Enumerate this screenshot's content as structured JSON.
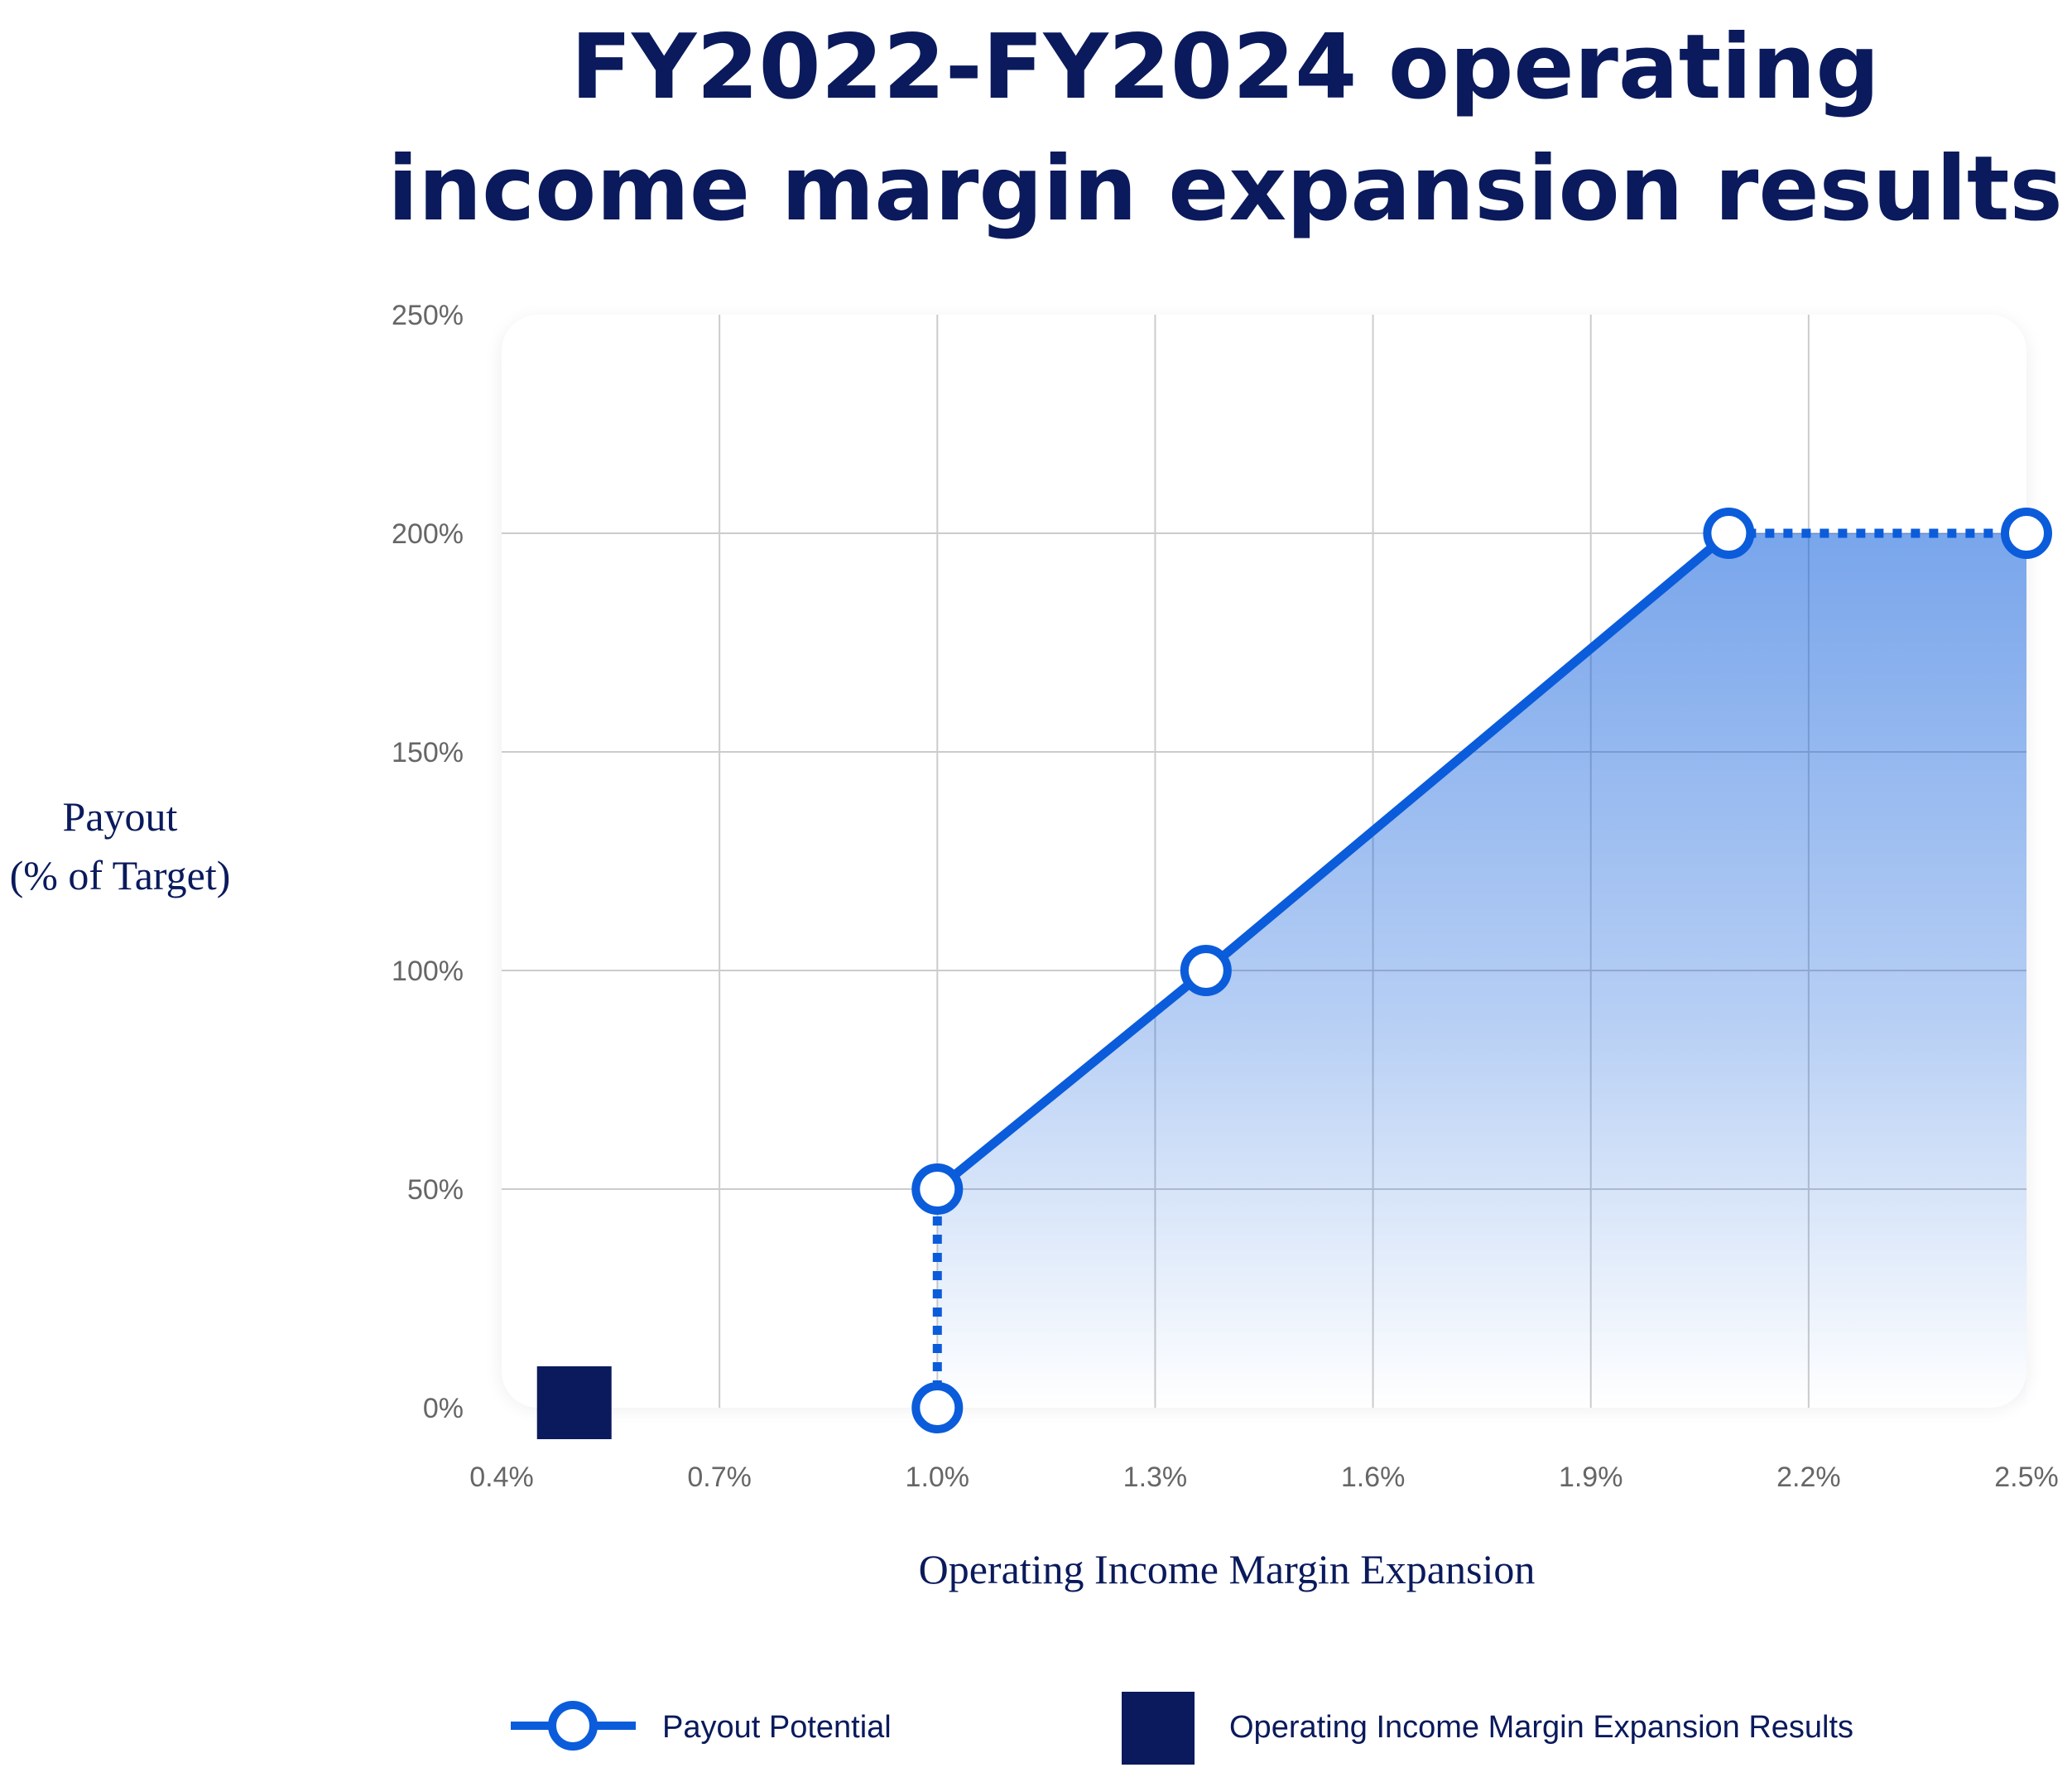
{
  "chart_data": {
    "type": "line",
    "title": "FY2022-FY2024 operating income margin expansion results",
    "title_lines": [
      "FY2022-FY2024 operating",
      "income margin expansion results"
    ],
    "xlabel": "Operating Income Margin Expansion",
    "ylabel_lines": [
      "Payout",
      "(% of Target)"
    ],
    "xlim": [
      0.4,
      2.5
    ],
    "ylim": [
      0,
      250
    ],
    "x_ticks": [
      0.4,
      0.7,
      1.0,
      1.3,
      1.6,
      1.9,
      2.2,
      2.5
    ],
    "x_tick_labels": [
      "0.4%",
      "0.7%",
      "1.0%",
      "1.3%",
      "1.6%",
      "1.9%",
      "2.2%",
      "2.5%"
    ],
    "y_ticks": [
      0,
      50,
      100,
      150,
      200,
      250
    ],
    "y_tick_labels": [
      "0%",
      "50%",
      "100%",
      "150%",
      "200%",
      "250%"
    ],
    "grid": true,
    "legend_position": "bottom",
    "colors": {
      "payout": "#0b5cdb",
      "result": "#0a1a5c",
      "text": "#0a1a5c",
      "grid": "#cccccc",
      "tick": "#666666"
    },
    "series": [
      {
        "name": "Payout Potential",
        "x": [
          1.0,
          1.0,
          1.37,
          2.09,
          2.5
        ],
        "y": [
          0,
          50,
          100,
          200,
          200
        ],
        "segment_styles": [
          "dotted",
          "solid",
          "solid",
          "dotted"
        ]
      },
      {
        "name": "Operating Income Margin Expansion Results",
        "marker": "square",
        "x": [
          0.5
        ],
        "y": [
          0
        ]
      }
    ]
  }
}
